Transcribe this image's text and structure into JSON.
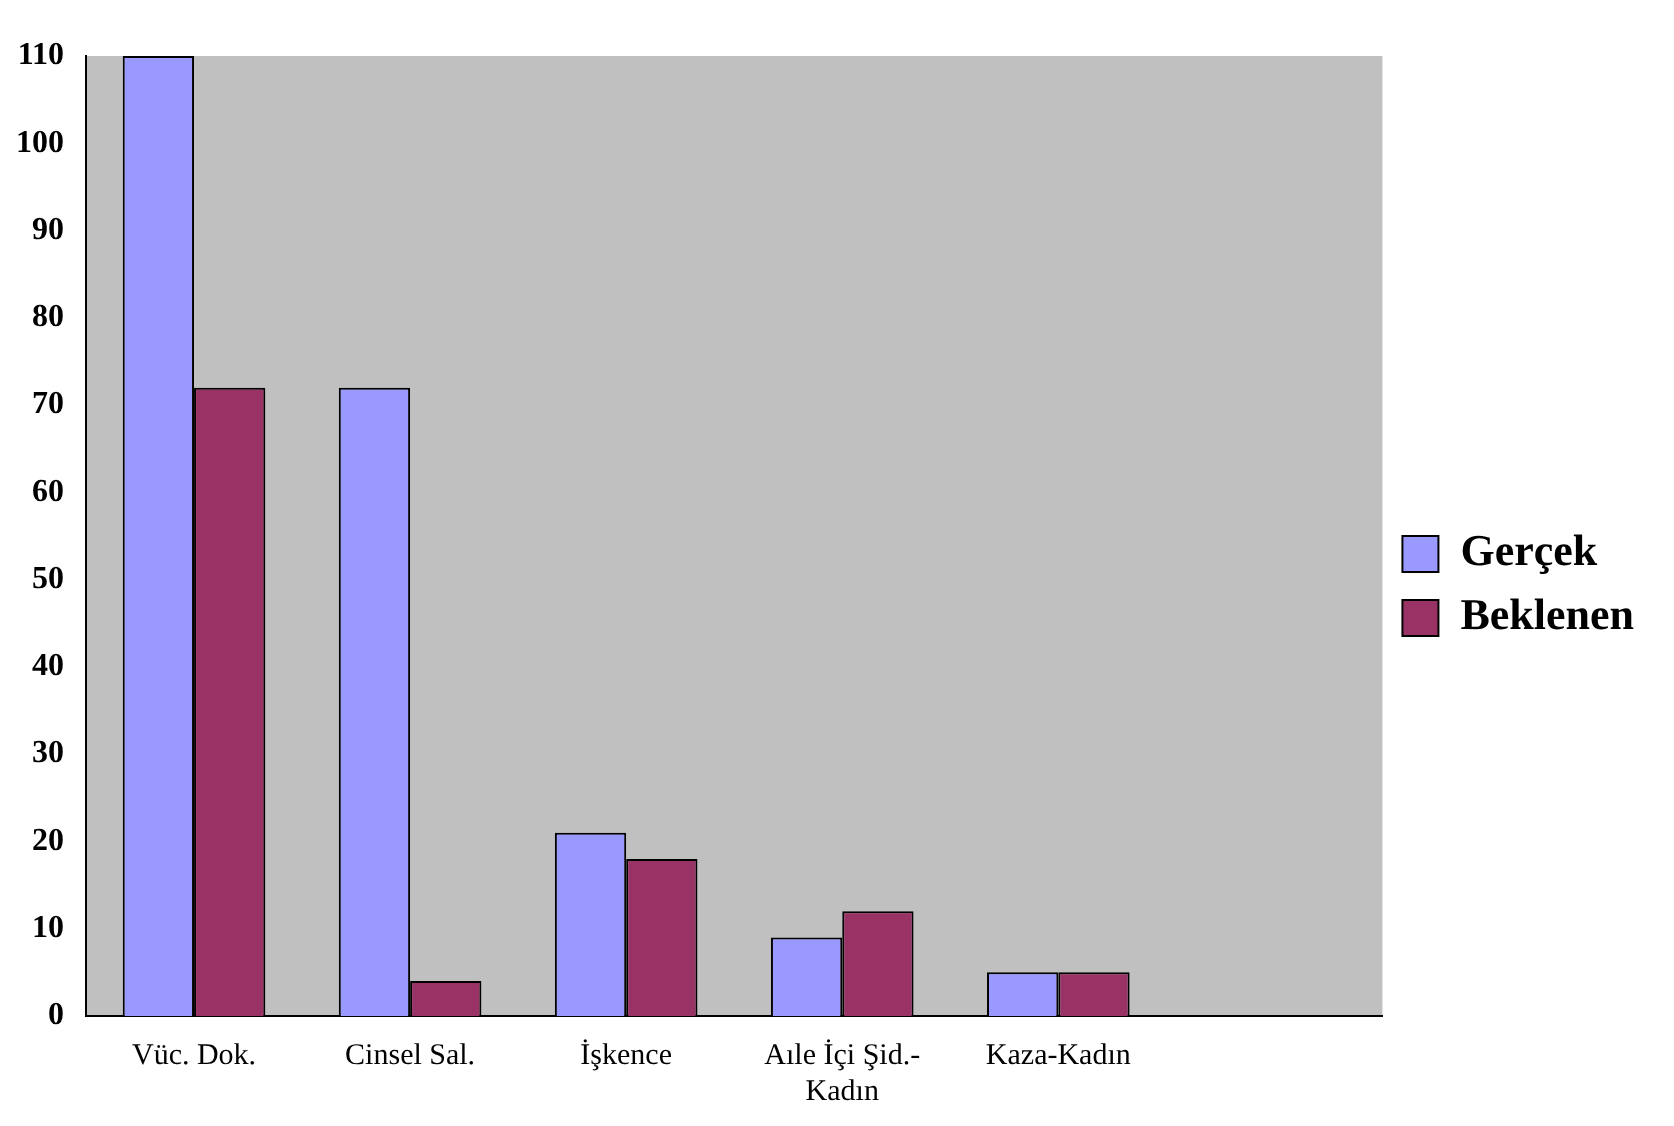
{
  "chart_data": {
    "type": "bar",
    "categories": [
      "Vüc. Dok.",
      "Cinsel Sal.",
      "İşkence",
      "Aıle İçi Şid.-\nKadın",
      "Kaza-Kadın",
      null
    ],
    "series": [
      {
        "name": "Gerçek",
        "color": "#9999ff",
        "values": [
          110,
          72,
          21,
          9,
          5,
          null
        ]
      },
      {
        "name": "Beklenen",
        "color": "#993366",
        "values": [
          72,
          4,
          18,
          12,
          5,
          null
        ]
      }
    ],
    "ylim": [
      0,
      110
    ],
    "yticks": [
      0,
      10,
      20,
      30,
      40,
      50,
      60,
      70,
      80,
      90,
      100,
      110
    ],
    "grid": false,
    "legend": "right"
  }
}
